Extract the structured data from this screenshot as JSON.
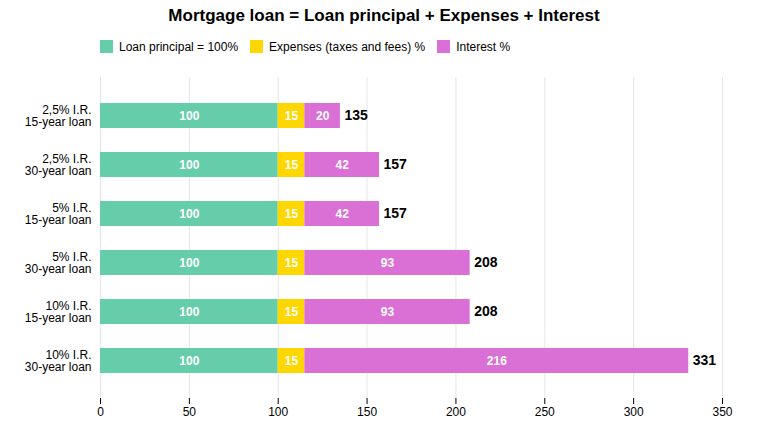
{
  "chart_data": {
    "type": "bar",
    "orientation": "horizontal",
    "stacked": true,
    "title": "Mortgage loan = Loan principal + Expenses + Interest",
    "categories": [
      "10% I.R.\n30-year loan",
      "10% I.R.\n15-year loan",
      "5% I.R.\n30-year loan",
      "5% I.R.\n15-year loan",
      "2,5% I.R.\n30-year loan",
      "2,5% I.R.\n15-year loan"
    ],
    "series": [
      {
        "name": "Loan principal = 100%",
        "color": "#66CDAA",
        "values": [
          100,
          100,
          100,
          100,
          100,
          100
        ]
      },
      {
        "name": "Expenses (taxes and fees) %",
        "color": "#FFD700",
        "values": [
          15,
          15,
          15,
          15,
          15,
          15
        ]
      },
      {
        "name": "Interest %",
        "color": "#DA70D6",
        "values": [
          216,
          93,
          93,
          42,
          42,
          20
        ]
      }
    ],
    "totals": [
      331,
      208,
      208,
      157,
      157,
      135
    ],
    "xlim": [
      0,
      350
    ],
    "xticks": [
      0,
      50,
      100,
      150,
      200,
      250,
      300,
      350
    ],
    "grid": true,
    "legend": "upper left",
    "data_labels": true
  }
}
